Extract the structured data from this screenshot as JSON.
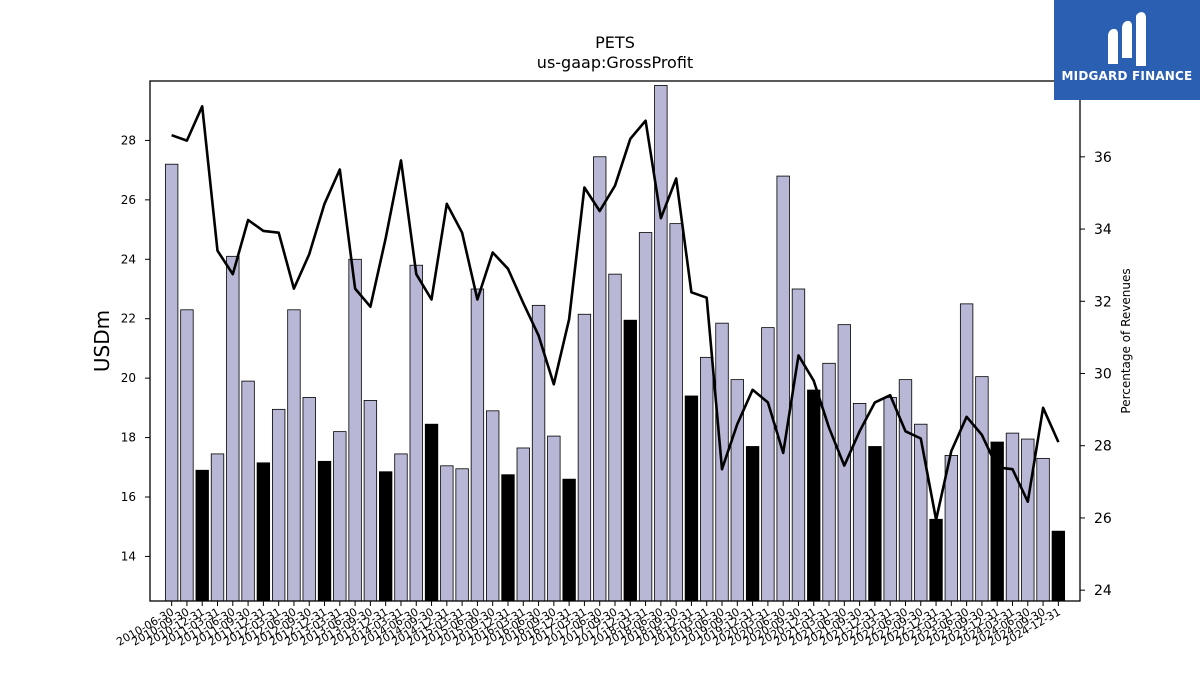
{
  "logo": {
    "text": "MIDGARD FINANCE"
  },
  "colors": {
    "bar_fill": "#b8b7d6",
    "bar_highlight": "#000000",
    "line": "#000000",
    "logo_bg": "#2b5fb2"
  },
  "chart_data": {
    "type": "bar",
    "title": "PETS",
    "subtitle": "us-gaap:GrossProfit",
    "ylabel": "USDm",
    "y2label": "Percentage of Revenues",
    "ylim": [
      12.5,
      30.0
    ],
    "y2lim": [
      23.7,
      38.1
    ],
    "yticks": [
      14,
      16,
      18,
      20,
      22,
      24,
      26,
      28
    ],
    "y2ticks": [
      24,
      26,
      28,
      30,
      32,
      34,
      36
    ],
    "categories": [
      "2010-06-30",
      "2010-09-30",
      "2010-12-31",
      "2011-03-31",
      "2011-06-30",
      "2011-09-30",
      "2011-12-31",
      "2012-03-31",
      "2012-06-30",
      "2012-09-30",
      "2012-12-31",
      "2013-03-31",
      "2013-06-30",
      "2013-09-30",
      "2013-12-31",
      "2014-03-31",
      "2014-06-30",
      "2014-09-30",
      "2014-12-31",
      "2015-03-31",
      "2015-06-30",
      "2015-09-30",
      "2015-12-31",
      "2016-03-31",
      "2016-06-30",
      "2016-09-30",
      "2016-12-31",
      "2017-03-31",
      "2017-06-30",
      "2017-09-30",
      "2017-12-31",
      "2018-03-31",
      "2018-06-30",
      "2018-09-30",
      "2018-12-31",
      "2019-03-31",
      "2019-06-30",
      "2019-09-30",
      "2019-12-31",
      "2020-03-31",
      "2020-06-30",
      "2020-09-30",
      "2020-12-31",
      "2021-03-31",
      "2021-06-30",
      "2021-09-30",
      "2021-12-31",
      "2022-03-31",
      "2022-06-30",
      "2022-09-30",
      "2022-12-31",
      "2023-03-31",
      "2023-06-30",
      "2023-09-30",
      "2023-12-31",
      "2024-03-31",
      "2024-06-30",
      "2024-09-30",
      "2024-12-31"
    ],
    "xticklabels": [
      "2010-06-30",
      "2010-09-30",
      "2010-12-31",
      "2011-03-31",
      "2011-06-30",
      "2011-09-30",
      "2011-12-31",
      "2012-03-31",
      "2012-06-30",
      "2012-09-30",
      "2012-12-31",
      "2013-03-31",
      "2013-06-30",
      "2013-09-30",
      "2013-12-31",
      "2014-03-31",
      "2014-06-30",
      "2014-09-30",
      "2014-12-31",
      "2015-03-31",
      "2015-06-30",
      "2015-09-30",
      "2015-12-31",
      "2016-03-31",
      "2016-06-30",
      "2016-09-30",
      "2016-12-31",
      "2017-03-31",
      "2017-06-30",
      "2017-09-30",
      "2017-12-31",
      "2018-03-31",
      "2018-06-30",
      "2018-09-30",
      "2018-12-31",
      "2019-03-31",
      "2019-06-30",
      "2019-09-30",
      "2019-12-31",
      "2020-03-31",
      "2020-06-30",
      "2020-09-30",
      "2020-12-31",
      "2021-03-31",
      "2021-06-30",
      "2021-09-30",
      "2021-12-31",
      "2022-03-31",
      "2022-06-30",
      "2022-09-30",
      "2022-12-31",
      "2023-03-31",
      "2023-06-30",
      "2023-09-30",
      "2023-12-31",
      "2024-03-31",
      "2024-06-30",
      "2024-09-30",
      "2024-12-31"
    ],
    "series": [
      {
        "type": "bar",
        "values": [
          27.2,
          22.3,
          16.9,
          17.45,
          24.1,
          19.9,
          17.15,
          18.95,
          22.3,
          19.35,
          17.2,
          18.2,
          24.0,
          19.25,
          16.85,
          17.45,
          23.8,
          18.45,
          17.05,
          16.95,
          23.0,
          18.9,
          16.75,
          17.65,
          22.45,
          18.05,
          16.6,
          22.15,
          27.45,
          23.5,
          21.95,
          24.9,
          29.85,
          25.2,
          19.4,
          20.7,
          21.85,
          19.95,
          17.7,
          21.7,
          26.8,
          23.0,
          19.6,
          20.5,
          21.8,
          19.15,
          17.7,
          19.35,
          19.95,
          18.45,
          15.25,
          17.4,
          22.5,
          20.05,
          17.85,
          18.15,
          17.95,
          17.3,
          14.85
        ],
        "highlight": [
          false,
          false,
          true,
          false,
          false,
          false,
          true,
          false,
          false,
          false,
          true,
          false,
          false,
          false,
          true,
          false,
          false,
          true,
          false,
          false,
          false,
          false,
          true,
          false,
          false,
          false,
          true,
          false,
          false,
          false,
          true,
          false,
          false,
          false,
          true,
          false,
          false,
          false,
          true,
          false,
          false,
          false,
          true,
          false,
          false,
          false,
          true,
          false,
          false,
          false,
          true,
          false,
          false,
          false,
          true,
          false,
          false,
          false,
          true
        ]
      },
      {
        "type": "line",
        "axis": "right",
        "values": [
          36.6,
          36.45,
          37.4,
          33.4,
          32.75,
          34.25,
          33.95,
          33.9,
          32.35,
          33.3,
          34.7,
          35.65,
          32.35,
          31.85,
          33.75,
          35.9,
          32.75,
          32.05,
          34.7,
          33.9,
          32.05,
          33.35,
          32.9,
          31.95,
          31.05,
          29.7,
          31.5,
          35.15,
          34.5,
          35.2,
          36.5,
          37.0,
          34.3,
          35.4,
          32.25,
          32.1,
          27.35,
          28.6,
          29.55,
          29.2,
          27.8,
          30.5,
          29.8,
          28.5,
          27.45,
          28.4,
          29.2,
          29.4,
          28.4,
          28.2,
          25.95,
          27.85,
          28.8,
          28.3,
          27.4,
          27.35,
          26.45,
          29.05,
          28.1
        ]
      }
    ],
    "grid": false,
    "legend": "none"
  }
}
